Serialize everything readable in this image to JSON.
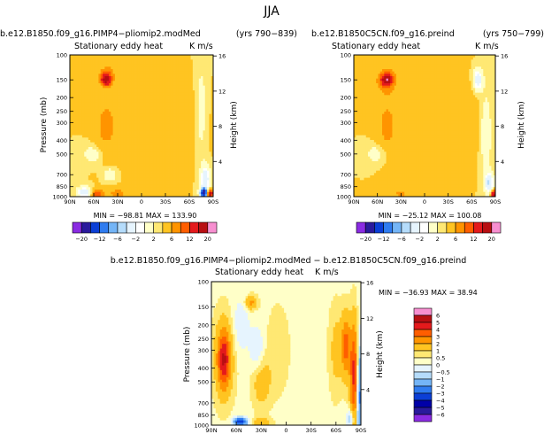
{
  "figure_title": "JJA",
  "panels": [
    {
      "left_title": "b.e12.B1850.f09_g16.PIMP4−pliomip2.modMed",
      "right_title": "(yrs 790−839)",
      "subtitle": "Stationary eddy heat",
      "units": "K m/s",
      "minmax": "MIN = −98.81   MAX = 133.90"
    },
    {
      "left_title": "b.e12.B1850C5CN.f09_g16.preind",
      "right_title": "(yrs 750−799)",
      "subtitle": "Stationary eddy heat",
      "units": "K m/s",
      "minmax": "MIN = −25.12   MAX = 100.08"
    },
    {
      "left_title": "b.e12.B1850.f09_g16.PIMP4−pliomip2.modMed − b.e12.B1850C5CN.f09_g16.preind",
      "right_title": "",
      "subtitle": "Stationary eddy heat",
      "units": "K m/s",
      "minmax": "MIN = −36.93   MAX =  38.94"
    }
  ],
  "chart_data": {
    "type": "heatmap",
    "plot_style": "filled contour (latitude-pressure cross section)",
    "x_tick_labels": [
      "90N",
      "60N",
      "30N",
      "0",
      "30S",
      "60S",
      "90S"
    ],
    "x_values": [
      90,
      60,
      30,
      0,
      -30,
      -60,
      -90
    ],
    "x_range": [
      90,
      -90
    ],
    "y_left_label": "Pressure  (mb)",
    "y_left_ticks": [
      100,
      150,
      200,
      250,
      300,
      400,
      500,
      700,
      850,
      1000
    ],
    "y_left_tick_labels": [
      "100",
      "150",
      "200",
      "250",
      "300",
      "400",
      "500",
      "700",
      "850",
      "1000"
    ],
    "y_right_label": "Height  (km)",
    "y_right_ticks": [
      16,
      12,
      8,
      4
    ],
    "y_scale": "log",
    "colorbar_top_labels": [
      "−20",
      "−12",
      "−6",
      "−2",
      "2",
      "6",
      "12",
      "20"
    ],
    "colorbar_top_colors": [
      "#8a2be2",
      "#2a1a9c",
      "#0b3fd6",
      "#2f7cf0",
      "#74b5f7",
      "#b5dcfb",
      "#e6f4fe",
      "#ffffff",
      "#ffffc8",
      "#ffe873",
      "#ffc421",
      "#ff9400",
      "#ff5e00",
      "#e41a1c",
      "#b80f12",
      "#f78fd0"
    ],
    "colorbar_diff_labels": [
      "6",
      "5",
      "4",
      "3",
      "2",
      "1",
      "0.5",
      "0",
      "−0.5",
      "−1",
      "−2",
      "−3",
      "−4",
      "−5",
      "−6"
    ],
    "colorbar_diff_colors": [
      "#f78fd0",
      "#b80f12",
      "#e41a1c",
      "#ff5e00",
      "#ff9400",
      "#ffc421",
      "#ffe873",
      "#ffffc8",
      "#e6f4fe",
      "#b5dcfb",
      "#74b5f7",
      "#2f7cf0",
      "#0b3fd6",
      "#0000a8",
      "#2a1a9c",
      "#8a2be2"
    ],
    "panels": [
      {
        "name": "PIMP4",
        "min": -98.81,
        "max": 133.9,
        "background_level": 2,
        "features": [
          {
            "lat": 45,
            "p": 150,
            "sx": 4,
            "sy": 0.06,
            "v": 10
          },
          {
            "lat": 43,
            "p": 140,
            "sx": 7,
            "sy": 0.12,
            "v": 4
          },
          {
            "lat": 45,
            "p": 320,
            "sx": 10,
            "sy": 0.35,
            "v": 2.5
          },
          {
            "lat": 60,
            "p": 500,
            "sx": 10,
            "sy": 0.12,
            "v": -2
          },
          {
            "lat": 40,
            "p": 700,
            "sx": 6,
            "sy": 0.08,
            "v": -2.5
          },
          {
            "lat": 72,
            "p": 930,
            "sx": 6,
            "sy": 0.06,
            "v": -6
          },
          {
            "lat": 55,
            "p": 960,
            "sx": 5,
            "sy": 0.05,
            "v": 6
          },
          {
            "lat": 30,
            "p": 950,
            "sx": 8,
            "sy": 0.06,
            "v": 3
          },
          {
            "lat": -20,
            "p": 300,
            "sx": 30,
            "sy": 0.4,
            "v": 2
          },
          {
            "lat": -75,
            "p": 250,
            "sx": 5,
            "sy": 0.5,
            "v": -2
          },
          {
            "lat": -80,
            "p": 750,
            "sx": 4,
            "sy": 0.15,
            "v": -6
          },
          {
            "lat": -78,
            "p": 940,
            "sx": 3,
            "sy": 0.05,
            "v": -20
          },
          {
            "lat": -86,
            "p": 960,
            "sx": 2.5,
            "sy": 0.05,
            "v": 12
          }
        ]
      },
      {
        "name": "preind",
        "min": -25.12,
        "max": 100.08,
        "background_level": 2,
        "features": [
          {
            "lat": 48,
            "p": 150,
            "sx": 5,
            "sy": 0.06,
            "v": 10
          },
          {
            "lat": 48,
            "p": 150,
            "sx": 9,
            "sy": 0.15,
            "v": 4
          },
          {
            "lat": 48,
            "p": 320,
            "sx": 9,
            "sy": 0.35,
            "v": 2.5
          },
          {
            "lat": 60,
            "p": 500,
            "sx": 10,
            "sy": 0.12,
            "v": -2
          },
          {
            "lat": 30,
            "p": 950,
            "sx": 8,
            "sy": 0.06,
            "v": 2.5
          },
          {
            "lat": -20,
            "p": 300,
            "sx": 30,
            "sy": 0.4,
            "v": 2
          },
          {
            "lat": -68,
            "p": 150,
            "sx": 4,
            "sy": 0.12,
            "v": -6
          },
          {
            "lat": -78,
            "p": 350,
            "sx": 5,
            "sy": 0.45,
            "v": -2.5
          },
          {
            "lat": -82,
            "p": 800,
            "sx": 4,
            "sy": 0.12,
            "v": -6
          },
          {
            "lat": -88,
            "p": 970,
            "sx": 2.5,
            "sy": 0.05,
            "v": 12
          }
        ]
      },
      {
        "name": "difference",
        "min": -36.93,
        "max": 38.94,
        "background_level": 0.3,
        "features": [
          {
            "lat": 75,
            "p": 350,
            "sx": 5,
            "sy": 0.3,
            "v": 3.5
          },
          {
            "lat": 75,
            "p": 340,
            "sx": 9,
            "sy": 0.5,
            "v": 1.5
          },
          {
            "lat": 55,
            "p": 200,
            "sx": 7,
            "sy": 0.3,
            "v": -0.8
          },
          {
            "lat": 42,
            "p": 140,
            "sx": 5,
            "sy": 0.08,
            "v": 2
          },
          {
            "lat": 35,
            "p": 300,
            "sx": 6,
            "sy": 0.25,
            "v": -1
          },
          {
            "lat": 30,
            "p": 500,
            "sx": 8,
            "sy": 0.3,
            "v": 1.2
          },
          {
            "lat": 10,
            "p": 300,
            "sx": 10,
            "sy": 0.5,
            "v": 0.6
          },
          {
            "lat": 55,
            "p": 950,
            "sx": 6,
            "sy": 0.05,
            "v": -4
          },
          {
            "lat": 30,
            "p": 960,
            "sx": 8,
            "sy": 0.05,
            "v": 1.5
          },
          {
            "lat": -60,
            "p": 300,
            "sx": 6,
            "sy": 0.5,
            "v": 1
          },
          {
            "lat": -72,
            "p": 280,
            "sx": 4,
            "sy": 0.35,
            "v": 3
          },
          {
            "lat": -82,
            "p": 450,
            "sx": 3.5,
            "sy": 0.6,
            "v": 4
          },
          {
            "lat": -88,
            "p": 600,
            "sx": 2.5,
            "sy": 0.6,
            "v": -3
          },
          {
            "lat": -78,
            "p": 900,
            "sx": 3,
            "sy": 0.1,
            "v": -2
          }
        ]
      }
    ]
  }
}
